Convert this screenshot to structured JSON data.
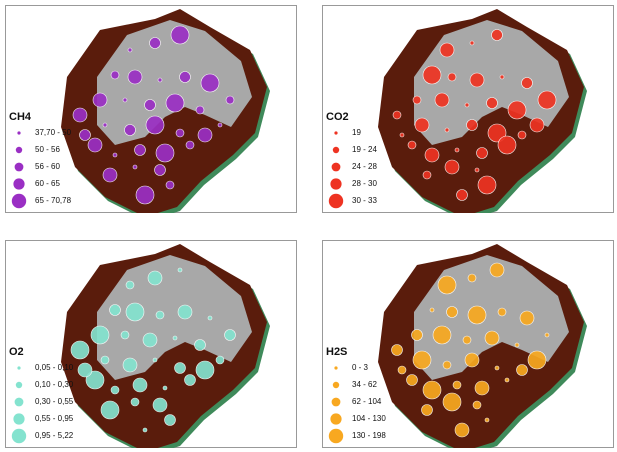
{
  "panels": [
    {
      "title": "CH4",
      "color": "#9a2fc4",
      "legend": [
        "37,70 - 50",
        "50 - 56",
        "56 - 60",
        "60 - 65",
        "65 - 70,78"
      ]
    },
    {
      "title": "CO2",
      "color": "#ee3322",
      "legend": [
        "19",
        "19 - 24",
        "24 - 28",
        "28 - 30",
        "30 - 33"
      ]
    },
    {
      "title": "O2",
      "color": "#84e3cf",
      "legend": [
        "0,05 - 0,10",
        "0,10 - 0,30",
        "0,30 - 0,55",
        "0,55 - 0,95",
        "0,95 - 5,22"
      ]
    },
    {
      "title": "H2S",
      "color": "#f8a820",
      "legend": [
        "0 - 3",
        "34 - 62",
        "62 - 104",
        "104 - 130",
        "130 - 198"
      ]
    }
  ]
}
